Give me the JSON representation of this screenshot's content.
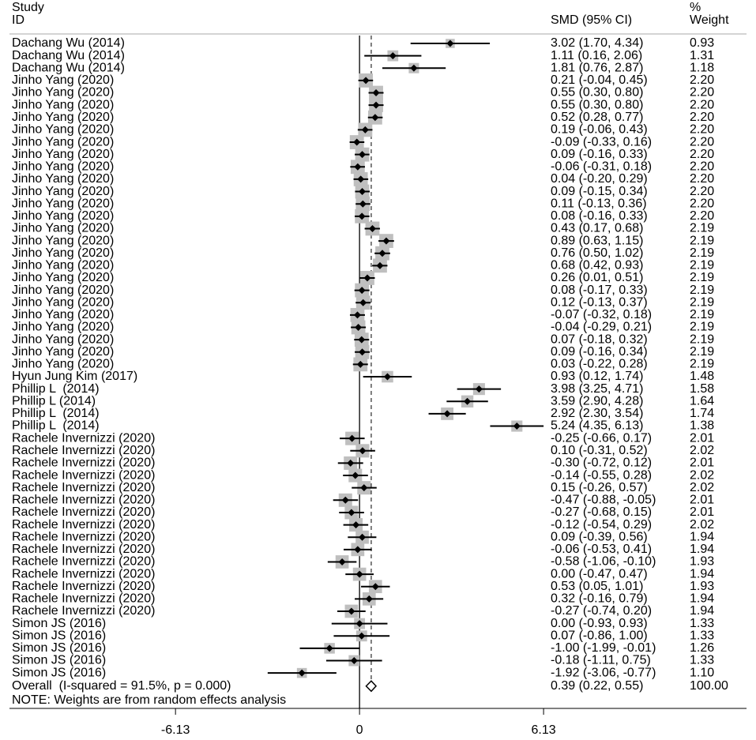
{
  "chart_data": {
    "type": "forest",
    "study_header": [
      "Study",
      "ID"
    ],
    "ci_header": "SMD (95% CI)",
    "weight_header": [
      "%",
      "Weight"
    ],
    "categories": [
      "Dachang Wu (2014)",
      "Dachang Wu (2014)",
      "Dachang Wu (2014)",
      "Jinho Yang (2020)",
      "Jinho Yang (2020)",
      "Jinho Yang (2020)",
      "Jinho Yang (2020)",
      "Jinho Yang (2020)",
      "Jinho Yang (2020)",
      "Jinho Yang (2020)",
      "Jinho Yang (2020)",
      "Jinho Yang (2020)",
      "Jinho Yang (2020)",
      "Jinho Yang (2020)",
      "Jinho Yang (2020)",
      "Jinho Yang (2020)",
      "Jinho Yang (2020)",
      "Jinho Yang (2020)",
      "Jinho Yang (2020)",
      "Jinho Yang (2020)",
      "Jinho Yang (2020)",
      "Jinho Yang (2020)",
      "Jinho Yang (2020)",
      "Jinho Yang (2020)",
      "Jinho Yang (2020)",
      "Jinho Yang (2020)",
      "Jinho Yang (2020)",
      "Hyun Jung Kim (2017)",
      "Phillip L  (2014)",
      "Phillip L (2014)",
      "Phillip L  (2014)",
      "Phillip L  (2014)",
      "Rachele Invernizzi (2020)",
      "Rachele Invernizzi (2020)",
      "Rachele Invernizzi (2020)",
      "Rachele Invernizzi (2020)",
      "Rachele Invernizzi (2020)",
      "Rachele Invernizzi (2020)",
      "Rachele Invernizzi (2020)",
      "Rachele Invernizzi (2020)",
      "Rachele Invernizzi (2020)",
      "Rachele Invernizzi (2020)",
      "Rachele Invernizzi (2020)",
      "Rachele Invernizzi (2020)",
      "Rachele Invernizzi (2020)",
      "Rachele Invernizzi (2020)",
      "Rachele Invernizzi (2020)",
      "Simon JS (2016)",
      "Simon JS (2016)",
      "Simon JS (2016)",
      "Simon JS (2016)",
      "Simon JS (2016)"
    ],
    "values": [
      3.02,
      1.11,
      1.81,
      0.21,
      0.55,
      0.55,
      0.52,
      0.19,
      -0.09,
      0.09,
      -0.06,
      0.04,
      0.09,
      0.11,
      0.08,
      0.43,
      0.89,
      0.76,
      0.68,
      0.26,
      0.08,
      0.12,
      -0.07,
      -0.04,
      0.07,
      0.09,
      0.03,
      0.93,
      3.98,
      3.59,
      2.92,
      5.24,
      -0.25,
      0.1,
      -0.3,
      -0.14,
      0.15,
      -0.47,
      -0.27,
      -0.12,
      0.09,
      -0.06,
      -0.58,
      0.0,
      0.53,
      0.32,
      -0.27,
      0.0,
      0.07,
      -1.0,
      -0.18,
      -1.92
    ],
    "lower": [
      1.7,
      0.16,
      0.76,
      -0.04,
      0.3,
      0.3,
      0.28,
      -0.06,
      -0.33,
      -0.16,
      -0.31,
      -0.2,
      -0.15,
      -0.13,
      -0.16,
      0.17,
      0.63,
      0.5,
      0.42,
      0.01,
      -0.17,
      -0.13,
      -0.32,
      -0.29,
      -0.18,
      -0.16,
      -0.22,
      0.12,
      3.25,
      2.9,
      2.3,
      4.35,
      -0.66,
      -0.31,
      -0.72,
      -0.55,
      -0.26,
      -0.88,
      -0.68,
      -0.54,
      -0.39,
      -0.53,
      -1.06,
      -0.47,
      0.05,
      -0.16,
      -0.74,
      -0.93,
      -0.86,
      -1.99,
      -1.11,
      -3.06
    ],
    "upper": [
      4.34,
      2.06,
      2.87,
      0.45,
      0.8,
      0.8,
      0.77,
      0.43,
      0.16,
      0.33,
      0.18,
      0.29,
      0.34,
      0.36,
      0.33,
      0.68,
      1.15,
      1.02,
      0.93,
      0.51,
      0.33,
      0.37,
      0.18,
      0.21,
      0.32,
      0.34,
      0.28,
      1.74,
      4.71,
      4.28,
      3.54,
      6.13,
      0.17,
      0.52,
      0.12,
      0.28,
      0.57,
      -0.05,
      0.15,
      0.29,
      0.56,
      0.41,
      -0.1,
      0.47,
      1.01,
      0.79,
      0.2,
      0.93,
      1.0,
      -0.01,
      0.75,
      -0.77
    ],
    "value_labels": [
      "3.02 (1.70, 4.34)",
      "1.11 (0.16, 2.06)",
      "1.81 (0.76, 2.87)",
      "0.21 (-0.04, 0.45)",
      "0.55 (0.30, 0.80)",
      "0.55 (0.30, 0.80)",
      "0.52 (0.28, 0.77)",
      "0.19 (-0.06, 0.43)",
      "-0.09 (-0.33, 0.16)",
      "0.09 (-0.16, 0.33)",
      "-0.06 (-0.31, 0.18)",
      "0.04 (-0.20, 0.29)",
      "0.09 (-0.15, 0.34)",
      "0.11 (-0.13, 0.36)",
      "0.08 (-0.16, 0.33)",
      "0.43 (0.17, 0.68)",
      "0.89 (0.63, 1.15)",
      "0.76 (0.50, 1.02)",
      "0.68 (0.42, 0.93)",
      "0.26 (0.01, 0.51)",
      "0.08 (-0.17, 0.33)",
      "0.12 (-0.13, 0.37)",
      "-0.07 (-0.32, 0.18)",
      "-0.04 (-0.29, 0.21)",
      "0.07 (-0.18, 0.32)",
      "0.09 (-0.16, 0.34)",
      "0.03 (-0.22, 0.28)",
      "0.93 (0.12, 1.74)",
      "3.98 (3.25, 4.71)",
      "3.59 (2.90, 4.28)",
      "2.92 (2.30, 3.54)",
      "5.24 (4.35, 6.13)",
      "-0.25 (-0.66, 0.17)",
      "0.10 (-0.31, 0.52)",
      "-0.30 (-0.72, 0.12)",
      "-0.14 (-0.55, 0.28)",
      "0.15 (-0.26, 0.57)",
      "-0.47 (-0.88, -0.05)",
      "-0.27 (-0.68, 0.15)",
      "-0.12 (-0.54, 0.29)",
      "0.09 (-0.39, 0.56)",
      "-0.06 (-0.53, 0.41)",
      "-0.58 (-1.06, -0.10)",
      "0.00 (-0.47, 0.47)",
      "0.53 (0.05, 1.01)",
      "0.32 (-0.16, 0.79)",
      "-0.27 (-0.74, 0.20)",
      "0.00 (-0.93, 0.93)",
      "0.07 (-0.86, 1.00)",
      "-1.00 (-1.99, -0.01)",
      "-0.18 (-1.11, 0.75)",
      "-1.92 (-3.06, -0.77)"
    ],
    "weights": [
      0.93,
      1.31,
      1.18,
      2.2,
      2.2,
      2.2,
      2.2,
      2.2,
      2.2,
      2.2,
      2.2,
      2.2,
      2.2,
      2.2,
      2.2,
      2.19,
      2.19,
      2.19,
      2.19,
      2.19,
      2.19,
      2.19,
      2.19,
      2.19,
      2.19,
      2.19,
      2.19,
      1.48,
      1.58,
      1.64,
      1.74,
      1.38,
      2.01,
      2.02,
      2.01,
      2.02,
      2.02,
      2.01,
      2.01,
      2.02,
      1.94,
      1.94,
      1.93,
      1.94,
      1.93,
      1.94,
      1.94,
      1.33,
      1.33,
      1.26,
      1.33,
      1.1
    ],
    "weight_labels": [
      "0.93",
      "1.31",
      "1.18",
      "2.20",
      "2.20",
      "2.20",
      "2.20",
      "2.20",
      "2.20",
      "2.20",
      "2.20",
      "2.20",
      "2.20",
      "2.20",
      "2.20",
      "2.19",
      "2.19",
      "2.19",
      "2.19",
      "2.19",
      "2.19",
      "2.19",
      "2.19",
      "2.19",
      "2.19",
      "2.19",
      "2.19",
      "1.48",
      "1.58",
      "1.64",
      "1.74",
      "1.38",
      "2.01",
      "2.02",
      "2.01",
      "2.02",
      "2.02",
      "2.01",
      "2.01",
      "2.02",
      "1.94",
      "1.94",
      "1.93",
      "1.94",
      "1.93",
      "1.94",
      "1.94",
      "1.33",
      "1.33",
      "1.26",
      "1.33",
      "1.10"
    ],
    "overall": {
      "label": "Overall  (I-squared = 91.5%, p = 0.000)",
      "value": 0.39,
      "lower": 0.22,
      "upper": 0.55,
      "value_label": "0.39 (0.22, 0.55)",
      "weight": 100,
      "weight_label": "100.00"
    },
    "note": "NOTE: Weights are from random effects analysis",
    "xlim": [
      -11.66,
      12.89
    ],
    "xticks": [
      -6.13,
      0,
      6.13
    ],
    "square_color": "#bfbfbf",
    "line_color": "#000000"
  }
}
